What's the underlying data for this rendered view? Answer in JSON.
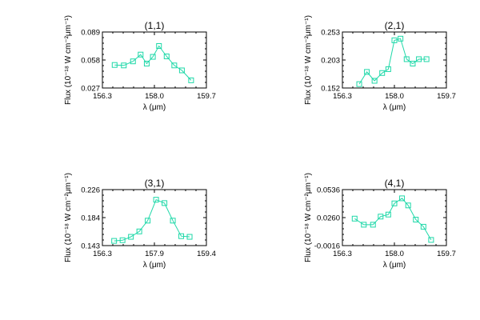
{
  "chart_data": [
    {
      "type": "line",
      "title": "(1,1)",
      "xlabel": "λ (μm)",
      "ylabel": "Flux (10⁻¹⁸ W cm⁻²μm⁻¹)",
      "xlim": [
        156.3,
        159.7
      ],
      "ylim": [
        0.027,
        0.089
      ],
      "xticks": [
        "156.3",
        "158.0",
        "159.7"
      ],
      "yticks": [
        "0.027",
        "0.058",
        "0.089"
      ],
      "marker": "square",
      "color": "#1ed8a8",
      "x": [
        156.7,
        157.0,
        157.3,
        157.55,
        157.75,
        157.95,
        158.15,
        158.4,
        158.65,
        158.9,
        159.2
      ],
      "y": [
        0.0525,
        0.052,
        0.0565,
        0.064,
        0.054,
        0.0615,
        0.0735,
        0.062,
        0.052,
        0.0465,
        0.0355
      ]
    },
    {
      "type": "line",
      "title": "(2,1)",
      "xlabel": "λ (μm)",
      "ylabel": "Flux (10⁻¹⁸ W cm⁻²μm⁻¹)",
      "xlim": [
        156.3,
        159.7
      ],
      "ylim": [
        0.152,
        0.253
      ],
      "xticks": [
        "156.3",
        "158.0",
        "159.7"
      ],
      "yticks": [
        "0.152",
        "0.203",
        "0.253"
      ],
      "marker": "square",
      "color": "#1ed8a8",
      "x": [
        156.85,
        157.1,
        157.35,
        157.6,
        157.8,
        158.0,
        158.2,
        158.4,
        158.6,
        158.8,
        159.05
      ],
      "y": [
        0.159,
        0.181,
        0.165,
        0.179,
        0.186,
        0.238,
        0.241,
        0.204,
        0.196,
        0.204,
        0.204
      ]
    },
    {
      "type": "line",
      "title": "(3,1)",
      "xlabel": "λ (μm)",
      "ylabel": "Flux (10⁻¹⁸ W cm⁻²μm⁻¹)",
      "xlim": [
        156.3,
        159.4
      ],
      "ylim": [
        0.143,
        0.226
      ],
      "xticks": [
        "156.3",
        "157.9",
        "159.4"
      ],
      "yticks": [
        "0.143",
        "0.184",
        "0.226"
      ],
      "marker": "square",
      "color": "#1ed8a8",
      "x": [
        156.65,
        156.9,
        157.15,
        157.4,
        157.65,
        157.9,
        158.15,
        158.4,
        158.65,
        158.9
      ],
      "y": [
        0.15,
        0.151,
        0.156,
        0.164,
        0.18,
        0.211,
        0.206,
        0.18,
        0.157,
        0.156
      ]
    },
    {
      "type": "line",
      "title": "(4,1)",
      "xlabel": "λ (μm)",
      "ylabel": "Flux (10⁻¹⁸ W cm⁻²μm⁻¹)",
      "xlim": [
        156.3,
        159.7
      ],
      "ylim": [
        -0.0016,
        0.0536
      ],
      "xticks": [
        "156.3",
        "158.0",
        "159.7"
      ],
      "yticks": [
        "-0.0016",
        "0.0260",
        "0.0536"
      ],
      "marker": "square",
      "color": "#1ed8a8",
      "x": [
        156.7,
        157.0,
        157.3,
        157.55,
        157.8,
        158.0,
        158.25,
        158.45,
        158.7,
        158.95,
        159.2
      ],
      "y": [
        0.025,
        0.019,
        0.019,
        0.027,
        0.029,
        0.04,
        0.045,
        0.038,
        0.024,
        0.017,
        0.004
      ]
    }
  ]
}
